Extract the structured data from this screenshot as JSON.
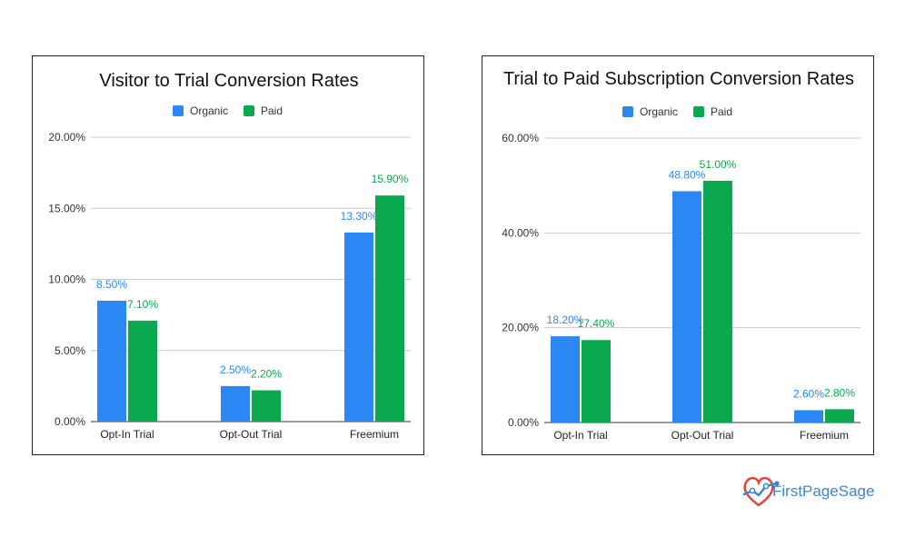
{
  "chart_data": [
    {
      "type": "bar",
      "title": "Visitor to Trial Conversion Rates",
      "categories": [
        "Opt-In Trial",
        "Opt-Out Trial",
        "Freemium"
      ],
      "series": [
        {
          "name": "Organic",
          "values": [
            8.5,
            2.5,
            13.3
          ],
          "labels": [
            "8.50%",
            "2.50%",
            "13.30%"
          ],
          "color": "#2b87f3"
        },
        {
          "name": "Paid",
          "values": [
            7.1,
            2.2,
            15.9
          ],
          "labels": [
            "7.10%",
            "2.20%",
            "15.90%"
          ],
          "color": "#0aa84f"
        }
      ],
      "yticks": [
        0,
        5,
        10,
        15,
        20
      ],
      "ytick_labels": [
        "0.00%",
        "5.00%",
        "10.00%",
        "15.00%",
        "20.00%"
      ],
      "ylim": [
        0,
        20
      ],
      "xlabel": "",
      "ylabel": "",
      "legend": "top-center",
      "grid": true
    },
    {
      "type": "bar",
      "title": "Trial to Paid Subscription Conversion Rates",
      "categories": [
        "Opt-In Trial",
        "Opt-Out Trial",
        "Freemium"
      ],
      "series": [
        {
          "name": "Organic",
          "values": [
            18.2,
            48.8,
            2.6
          ],
          "labels": [
            "18.20%",
            "48.80%",
            "2.60%"
          ],
          "color": "#2b87f3"
        },
        {
          "name": "Paid",
          "values": [
            17.4,
            51.0,
            2.8
          ],
          "labels": [
            "17.40%",
            "51.00%",
            "2.80%"
          ],
          "color": "#0aa84f"
        }
      ],
      "yticks": [
        0,
        20,
        40,
        60
      ],
      "ytick_labels": [
        "0.00%",
        "20.00%",
        "40.00%",
        "60.00%"
      ],
      "ylim": [
        0,
        60
      ],
      "xlabel": "",
      "ylabel": "",
      "legend": "top-center",
      "grid": true
    }
  ],
  "brand": {
    "name": "FirstPageSage",
    "logo_icon": "heart-chart-logo-icon",
    "accent_red": "#e5423c",
    "accent_blue": "#3a86d4"
  }
}
